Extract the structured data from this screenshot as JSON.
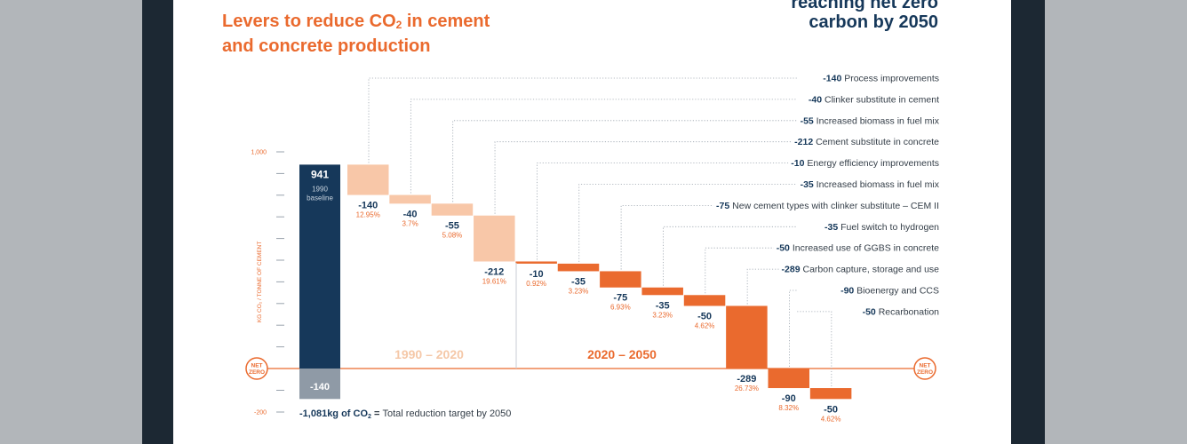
{
  "title_main": "Levers to reduce CO",
  "title_sub": "2",
  "title_tail": " in cement",
  "title_line2": "and concrete production",
  "headline_line1": "reaching net zero",
  "headline_line2": "carbon by 2050",
  "colors": {
    "navy": "#16385a",
    "orange": "#ea6a2e",
    "light_orange": "#f8c7a8",
    "period1_label": "#f5c8a8",
    "gray_bar": "#8f9aa6",
    "frame": "#1c2833",
    "background": "#b2b6ba"
  },
  "chart_data": {
    "type": "waterfall",
    "ylabel": "KG CO₂ / TONNE OF CEMENT",
    "ylim": [
      -200,
      1000
    ],
    "yticks": [
      {
        "value": 1000,
        "label": "1,000"
      },
      {
        "value": -200,
        "label": "-200"
      }
    ],
    "baseline": {
      "value": 941,
      "label": "941",
      "sublabel_line1": "1990",
      "sublabel_line2": "baseline",
      "residual_label": "-140"
    },
    "net_zero_label_line1": "NET",
    "net_zero_label_line2": "ZERO",
    "periods": [
      "1990 – 2020",
      "2020 – 2050"
    ],
    "steps": [
      {
        "value": -140,
        "label": "-140",
        "pct": "12.95%",
        "name": "Process improvements",
        "period": 0
      },
      {
        "value": -40,
        "label": "-40",
        "pct": "3.7%",
        "name": "Clinker substitute in cement",
        "period": 0
      },
      {
        "value": -55,
        "label": "-55",
        "pct": "5.08%",
        "name": "Increased biomass in fuel mix",
        "period": 0
      },
      {
        "value": -212,
        "label": "-212",
        "pct": "19.61%",
        "name": "Cement substitute in concrete",
        "period": 0
      },
      {
        "value": -10,
        "label": "-10",
        "pct": "0.92%",
        "name": "Energy efficiency improvements",
        "period": 1
      },
      {
        "value": -35,
        "label": "-35",
        "pct": "3.23%",
        "name": "Increased biomass in fuel mix",
        "period": 1
      },
      {
        "value": -75,
        "label": "-75",
        "pct": "6.93%",
        "name": "New cement types with clinker substitute – CEM II",
        "period": 1
      },
      {
        "value": -35,
        "label": "-35",
        "pct": "3.23%",
        "name": "Fuel switch to hydrogen",
        "period": 1
      },
      {
        "value": -50,
        "label": "-50",
        "pct": "4.62%",
        "name": "Increased use of GGBS in concrete",
        "period": 1
      },
      {
        "value": -289,
        "label": "-289",
        "pct": "26.73%",
        "name": "Carbon capture, storage and use",
        "period": 1
      },
      {
        "value": -90,
        "label": "-90",
        "pct": "8.32%",
        "name": "Bioenergy and CCS",
        "period": 1
      },
      {
        "value": -50,
        "label": "-50",
        "pct": "4.62%",
        "name": "Recarbonation",
        "period": 1
      }
    ],
    "total": {
      "value": "-1,081kg of CO",
      "value_sub": "2",
      "equals": " = ",
      "text": "Total reduction target by 2050"
    }
  }
}
